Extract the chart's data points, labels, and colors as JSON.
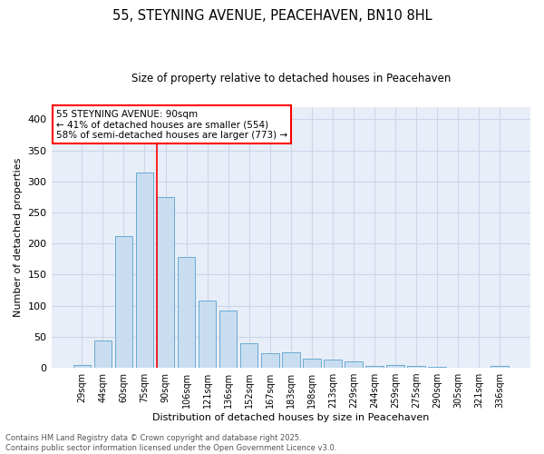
{
  "title_line1": "55, STEYNING AVENUE, PEACEHAVEN, BN10 8HL",
  "title_line2": "Size of property relative to detached houses in Peacehaven",
  "xlabel": "Distribution of detached houses by size in Peacehaven",
  "ylabel": "Number of detached properties",
  "bar_color": "#c9ddf0",
  "bar_edge_color": "#6aaad4",
  "categories": [
    "29sqm",
    "44sqm",
    "60sqm",
    "75sqm",
    "90sqm",
    "106sqm",
    "121sqm",
    "136sqm",
    "152sqm",
    "167sqm",
    "183sqm",
    "198sqm",
    "213sqm",
    "229sqm",
    "244sqm",
    "259sqm",
    "275sqm",
    "290sqm",
    "305sqm",
    "321sqm",
    "336sqm"
  ],
  "values": [
    4,
    44,
    212,
    315,
    275,
    178,
    108,
    92,
    40,
    24,
    25,
    15,
    14,
    11,
    3,
    5,
    3,
    2,
    0,
    0,
    3
  ],
  "red_line_index": 4,
  "annotation_text": "55 STEYNING AVENUE: 90sqm\n← 41% of detached houses are smaller (554)\n58% of semi-detached houses are larger (773) →",
  "footer_line1": "Contains HM Land Registry data © Crown copyright and database right 2025.",
  "footer_line2": "Contains public sector information licensed under the Open Government Licence v3.0.",
  "grid_color": "#ccd6e8",
  "background_color": "#e8eef8",
  "ylim": [
    0,
    420
  ],
  "yticks": [
    0,
    50,
    100,
    150,
    200,
    250,
    300,
    350,
    400
  ]
}
